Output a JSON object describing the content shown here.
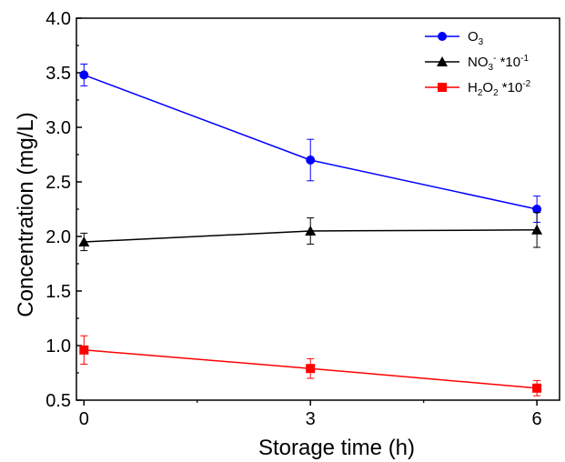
{
  "chart_data": {
    "type": "line",
    "xlabel": "Storage time (h)",
    "ylabel": "Concentration (mg/L)",
    "xlim": [
      -0.1,
      6.3
    ],
    "ylim": [
      0.5,
      4.0
    ],
    "x_ticks": [
      "0",
      "3",
      "6"
    ],
    "y_ticks": [
      "0.5",
      "1.0",
      "1.5",
      "2.0",
      "2.5",
      "3.0",
      "3.5",
      "4.0"
    ],
    "grid": false,
    "legend_position": "top-right",
    "series": [
      {
        "name": "O3",
        "label_main": "O",
        "label_sub": "3",
        "label_sup": "",
        "label_tail": "",
        "color": "#0000ff",
        "marker": "circle",
        "x": [
          0,
          3,
          6
        ],
        "y": [
          3.48,
          2.7,
          2.25
        ],
        "err": [
          0.1,
          0.19,
          0.12
        ]
      },
      {
        "name": "NO3- *10-1",
        "label_main": "NO",
        "label_sub": "3",
        "label_sup": "-",
        "label_tail": " *10",
        "label_tail_sup": "-1",
        "color": "#000000",
        "marker": "triangle",
        "x": [
          0,
          3,
          6
        ],
        "y": [
          1.95,
          2.05,
          2.06
        ],
        "err": [
          0.08,
          0.12,
          0.16
        ]
      },
      {
        "name": "H2O2 *10-2",
        "label_main": "H",
        "label_sub": "2",
        "label_mid": "O",
        "label_sub2": "2",
        "label_tail": " *10",
        "label_tail_sup": "-2",
        "color": "#ff0000",
        "marker": "square",
        "x": [
          0,
          3,
          6
        ],
        "y": [
          0.96,
          0.79,
          0.61
        ],
        "err": [
          0.13,
          0.09,
          0.07
        ]
      }
    ]
  }
}
